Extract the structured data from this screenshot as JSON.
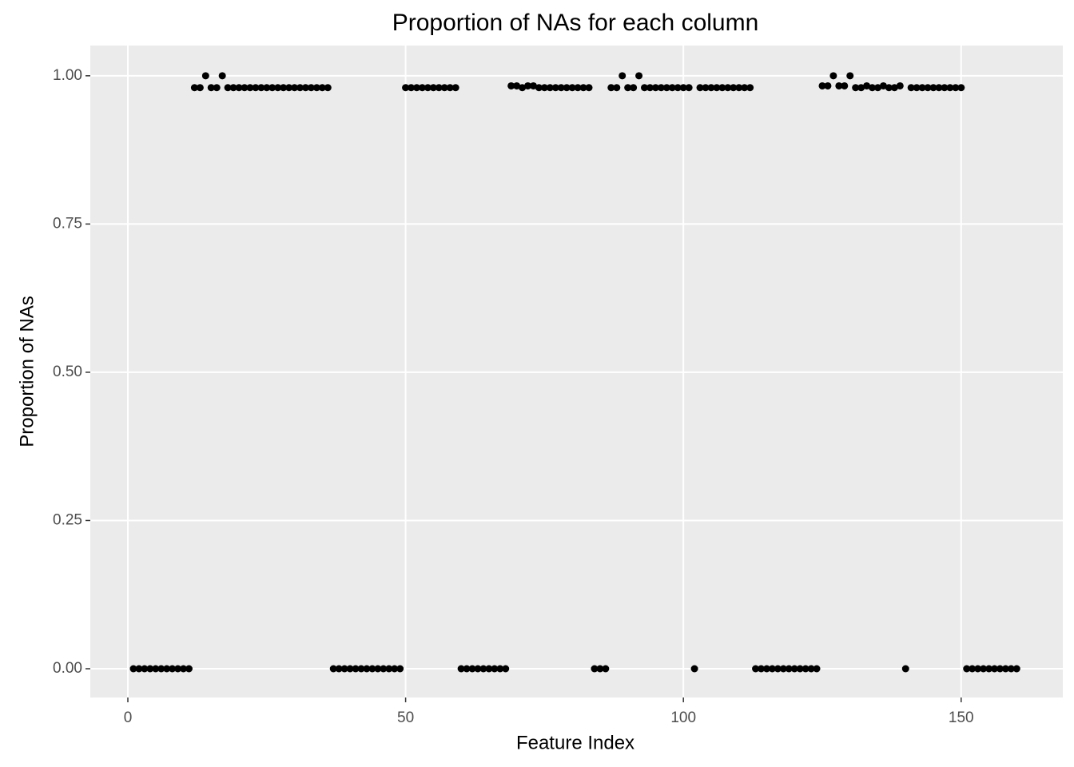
{
  "chart_data": {
    "type": "scatter",
    "title": "Proportion of NAs for each column",
    "x_label": "Feature Index",
    "y_label": "Proportion of NAs",
    "x": [
      1,
      2,
      3,
      4,
      5,
      6,
      7,
      8,
      9,
      10,
      11,
      12,
      13,
      14,
      15,
      16,
      17,
      18,
      19,
      20,
      21,
      22,
      23,
      24,
      25,
      26,
      27,
      28,
      29,
      30,
      31,
      32,
      33,
      34,
      35,
      36,
      37,
      38,
      39,
      40,
      41,
      42,
      43,
      44,
      45,
      46,
      47,
      48,
      49,
      50,
      51,
      52,
      53,
      54,
      55,
      56,
      57,
      58,
      59,
      60,
      61,
      62,
      63,
      64,
      65,
      66,
      67,
      68,
      69,
      70,
      71,
      72,
      73,
      74,
      75,
      76,
      77,
      78,
      79,
      80,
      81,
      82,
      83,
      84,
      85,
      86,
      87,
      88,
      89,
      90,
      91,
      92,
      93,
      94,
      95,
      96,
      97,
      98,
      99,
      100,
      101,
      102,
      103,
      104,
      105,
      106,
      107,
      108,
      109,
      110,
      111,
      112,
      113,
      114,
      115,
      116,
      117,
      118,
      119,
      120,
      121,
      122,
      123,
      124,
      125,
      126,
      127,
      128,
      129,
      130,
      131,
      132,
      133,
      134,
      135,
      136,
      137,
      138,
      139,
      140,
      141,
      142,
      143,
      144,
      145,
      146,
      147,
      148,
      149,
      150,
      151,
      152,
      153,
      154,
      155,
      156,
      157,
      158,
      159,
      160
    ],
    "values": [
      0,
      0,
      0,
      0,
      0,
      0,
      0,
      0,
      0,
      0,
      0,
      0.98,
      0.98,
      1,
      0.98,
      0.98,
      1,
      0.98,
      0.98,
      0.98,
      0.98,
      0.98,
      0.98,
      0.98,
      0.98,
      0.98,
      0.98,
      0.98,
      0.98,
      0.98,
      0.98,
      0.98,
      0.98,
      0.98,
      0.98,
      0.98,
      0,
      0,
      0,
      0,
      0,
      0,
      0,
      0,
      0,
      0,
      0,
      0,
      0,
      0.98,
      0.98,
      0.98,
      0.98,
      0.98,
      0.98,
      0.98,
      0.98,
      0.98,
      0.98,
      0,
      0,
      0,
      0,
      0,
      0,
      0,
      0,
      0,
      0.983,
      0.983,
      0.98,
      0.983,
      0.983,
      0.98,
      0.98,
      0.98,
      0.98,
      0.98,
      0.98,
      0.98,
      0.98,
      0.98,
      0.98,
      0,
      0,
      0,
      0.98,
      0.98,
      1,
      0.98,
      0.98,
      1,
      0.98,
      0.98,
      0.98,
      0.98,
      0.98,
      0.98,
      0.98,
      0.98,
      0.98,
      0,
      0.98,
      0.98,
      0.98,
      0.98,
      0.98,
      0.98,
      0.98,
      0.98,
      0.98,
      0.98,
      0,
      0,
      0,
      0,
      0,
      0,
      0,
      0,
      0,
      0,
      0,
      0,
      0.983,
      0.983,
      1,
      0.983,
      0.983,
      1,
      0.98,
      0.98,
      0.983,
      0.98,
      0.98,
      0.983,
      0.98,
      0.98,
      0.983,
      0,
      0.98,
      0.98,
      0.98,
      0.98,
      0.98,
      0.98,
      0.98,
      0.98,
      0.98,
      0.98,
      0,
      0,
      0,
      0,
      0,
      0,
      0,
      0,
      0,
      0
    ],
    "color": "#000000",
    "xlim": [
      -6.76,
      168.3
    ],
    "xticks": [
      0,
      50,
      100,
      150
    ],
    "ylim": [
      -0.0485,
      1.051
    ],
    "yticks": [
      {
        "value": 0,
        "label": "0.00"
      },
      {
        "value": 0.25,
        "label": "0.25"
      },
      {
        "value": 0.5,
        "label": "0.50"
      },
      {
        "value": 0.75,
        "label": "0.75"
      },
      {
        "value": 1,
        "label": "1.00"
      }
    ],
    "grid": true
  }
}
